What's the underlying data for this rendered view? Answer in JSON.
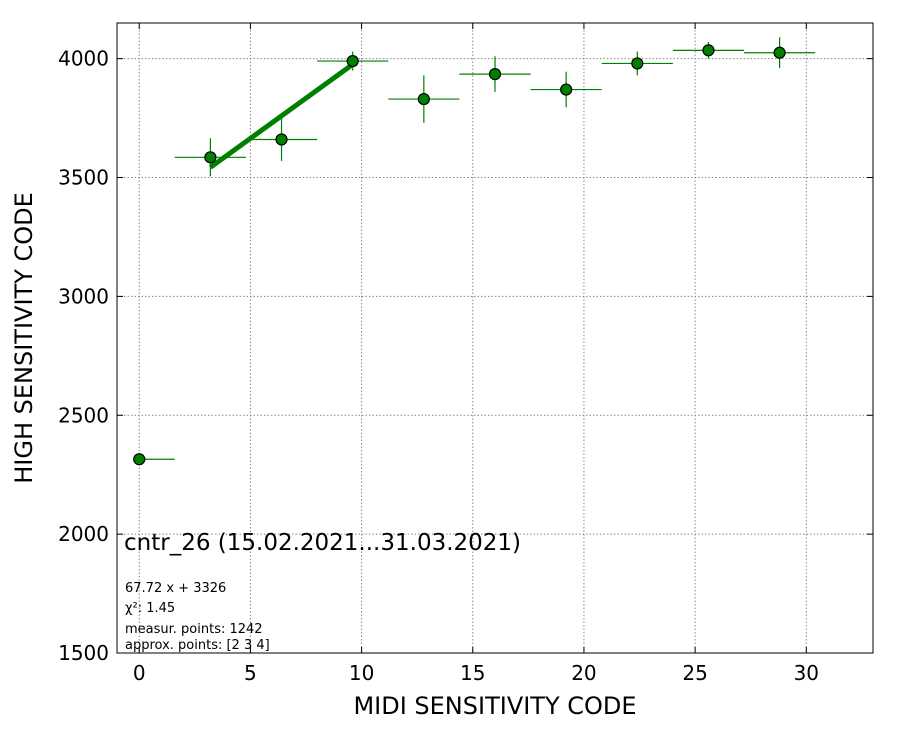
{
  "chart_data": {
    "type": "scatter",
    "title": "",
    "xlabel": "MIDI SENSITIVITY CODE",
    "ylabel": "HIGH SENSITIVITY CODE",
    "xlim": [
      -1,
      33
    ],
    "ylim": [
      1500,
      4150
    ],
    "xticks": [
      0,
      5,
      10,
      15,
      20,
      25,
      30
    ],
    "yticks": [
      1500,
      2000,
      2500,
      3000,
      3500,
      4000
    ],
    "grid": true,
    "colors": {
      "points": "#008000",
      "errorbars": "#008000",
      "fit_line": "#008000",
      "marker_edge": "#000000"
    },
    "series": [
      {
        "points": [
          {
            "x": 0.0,
            "y": 2315,
            "xerr": 1.6,
            "yerr": 0
          },
          {
            "x": 3.2,
            "y": 3585,
            "xerr": 1.6,
            "yerr": 80
          },
          {
            "x": 6.4,
            "y": 3660,
            "xerr": 1.6,
            "yerr": 90
          },
          {
            "x": 9.6,
            "y": 3990,
            "xerr": 1.6,
            "yerr": 40
          },
          {
            "x": 12.8,
            "y": 3830,
            "xerr": 1.6,
            "yerr": 100
          },
          {
            "x": 16.0,
            "y": 3935,
            "xerr": 1.6,
            "yerr": 75
          },
          {
            "x": 19.2,
            "y": 3870,
            "xerr": 1.6,
            "yerr": 75
          },
          {
            "x": 22.4,
            "y": 3980,
            "xerr": 1.6,
            "yerr": 50
          },
          {
            "x": 25.6,
            "y": 4035,
            "xerr": 1.6,
            "yerr": 35
          },
          {
            "x": 28.8,
            "y": 4025,
            "xerr": 1.6,
            "yerr": 65
          }
        ]
      }
    ],
    "fit_line": {
      "slope": 67.72,
      "intercept": 3326,
      "x_range": [
        3.2,
        9.6
      ]
    },
    "annotations": {
      "main": "cntr_26 (15.02.2021...31.03.2021)",
      "equation": "67.72 x + 3326",
      "chi2_label": "χ²: 1.45",
      "measured": "measur. points: 1242",
      "approx": "approx. points: [2 3 4]"
    }
  }
}
